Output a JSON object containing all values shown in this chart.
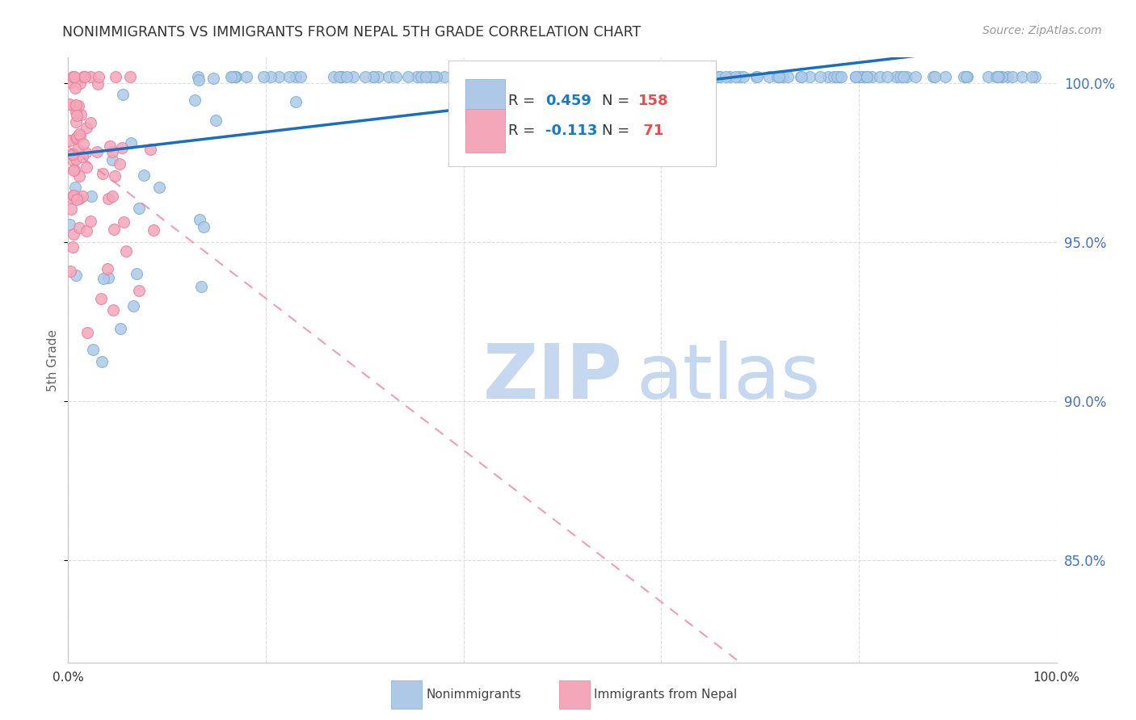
{
  "title": "NONIMMIGRANTS VS IMMIGRANTS FROM NEPAL 5TH GRADE CORRELATION CHART",
  "source": "Source: ZipAtlas.com",
  "ylabel": "5th Grade",
  "ytick_values": [
    0.85,
    0.9,
    0.95,
    1.0
  ],
  "xmin": 0.0,
  "xmax": 1.0,
  "ymin": 0.818,
  "ymax": 1.008,
  "R_nonimm": 0.459,
  "N_nonimm": 158,
  "R_immig": -0.113,
  "N_immig": 71,
  "blue_color": "#aec9e8",
  "blue_edge_color": "#7aafd4",
  "pink_color": "#f4a7b9",
  "pink_edge_color": "#e87ea1",
  "blue_line_color": "#1a6fbd",
  "pink_line_color": "#e87ea1",
  "legend_R_color": "#1a7abf",
  "legend_N_color": "#e05050",
  "watermark_zip_color": "#c5d8f0",
  "watermark_atlas_color": "#c5d8f0",
  "background_color": "#ffffff",
  "grid_color": "#dddddd",
  "title_color": "#333333",
  "right_axis_color": "#4472c4"
}
